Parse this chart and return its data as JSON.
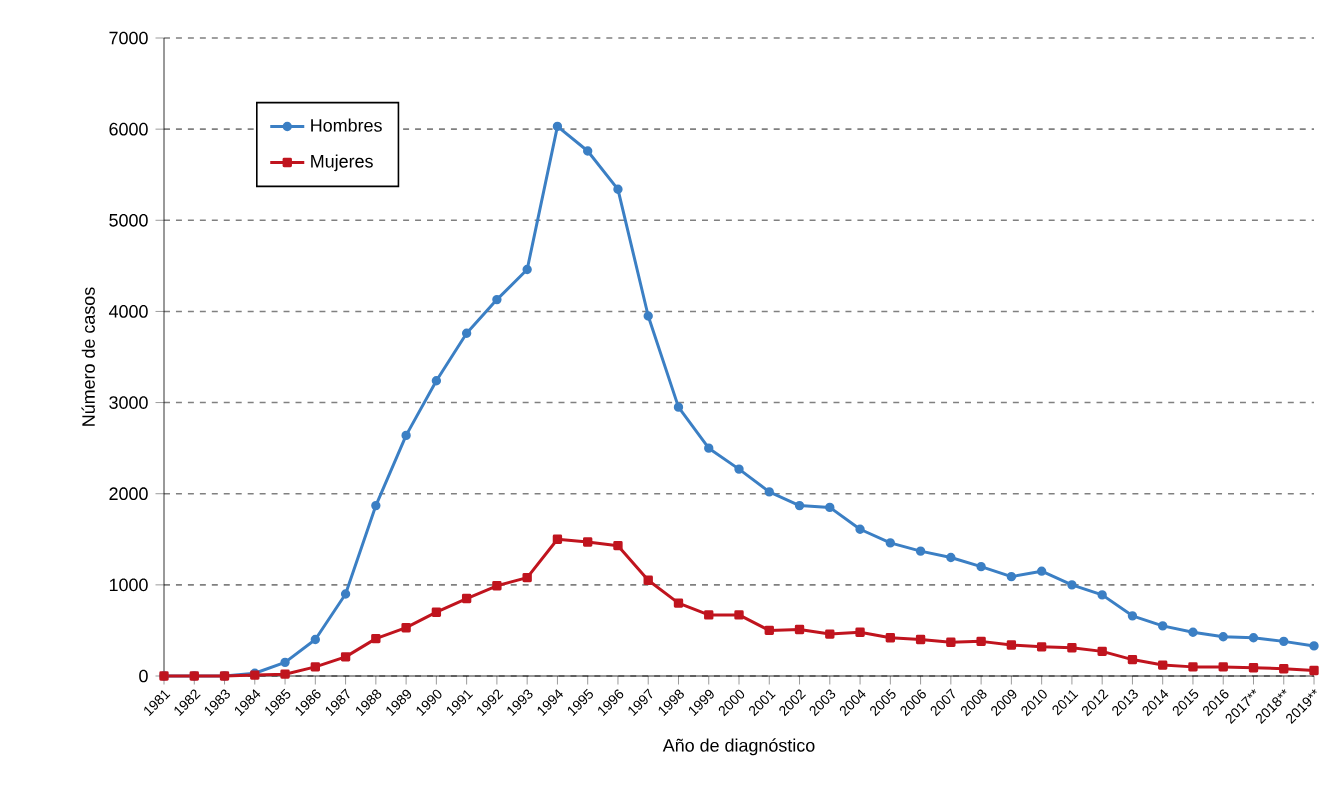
{
  "chart_data": {
    "type": "line",
    "xlabel": "Año de diagnóstico",
    "ylabel": "Número de casos",
    "categories": [
      "1981",
      "1982",
      "1983",
      "1984",
      "1985",
      "1986",
      "1987",
      "1988",
      "1989",
      "1990",
      "1991",
      "1992",
      "1993",
      "1994",
      "1995",
      "1996",
      "1997",
      "1998",
      "1999",
      "2000",
      "2001",
      "2002",
      "2003",
      "2004",
      "2005",
      "2006",
      "2007",
      "2008",
      "2009",
      "2010",
      "2011",
      "2012",
      "2013",
      "2014",
      "2015",
      "2016",
      "2017**",
      "2018**",
      "2019**"
    ],
    "series": [
      {
        "name": "Hombres",
        "color": "#3b7fc4",
        "marker": "circle",
        "values": [
          0,
          0,
          0,
          30,
          150,
          400,
          900,
          1870,
          2640,
          3240,
          3760,
          4130,
          4460,
          6030,
          5760,
          5340,
          3950,
          2950,
          2500,
          2270,
          2020,
          1870,
          1850,
          1610,
          1460,
          1370,
          1300,
          1200,
          1090,
          1150,
          1000,
          890,
          660,
          550,
          480,
          430,
          420,
          380,
          330
        ]
      },
      {
        "name": "Mujeres",
        "color": "#c0141e",
        "marker": "square",
        "values": [
          0,
          0,
          0,
          10,
          20,
          100,
          210,
          410,
          530,
          700,
          850,
          990,
          1080,
          1500,
          1470,
          1430,
          1050,
          800,
          670,
          670,
          500,
          510,
          460,
          480,
          420,
          400,
          370,
          380,
          340,
          320,
          310,
          270,
          180,
          120,
          100,
          100,
          90,
          80,
          60
        ]
      }
    ],
    "ylim": [
      0,
      7000
    ],
    "yticks": [
      0,
      1000,
      2000,
      3000,
      4000,
      5000,
      6000,
      7000
    ],
    "grid": "y",
    "legend": "top left",
    "line_style": "solid"
  }
}
